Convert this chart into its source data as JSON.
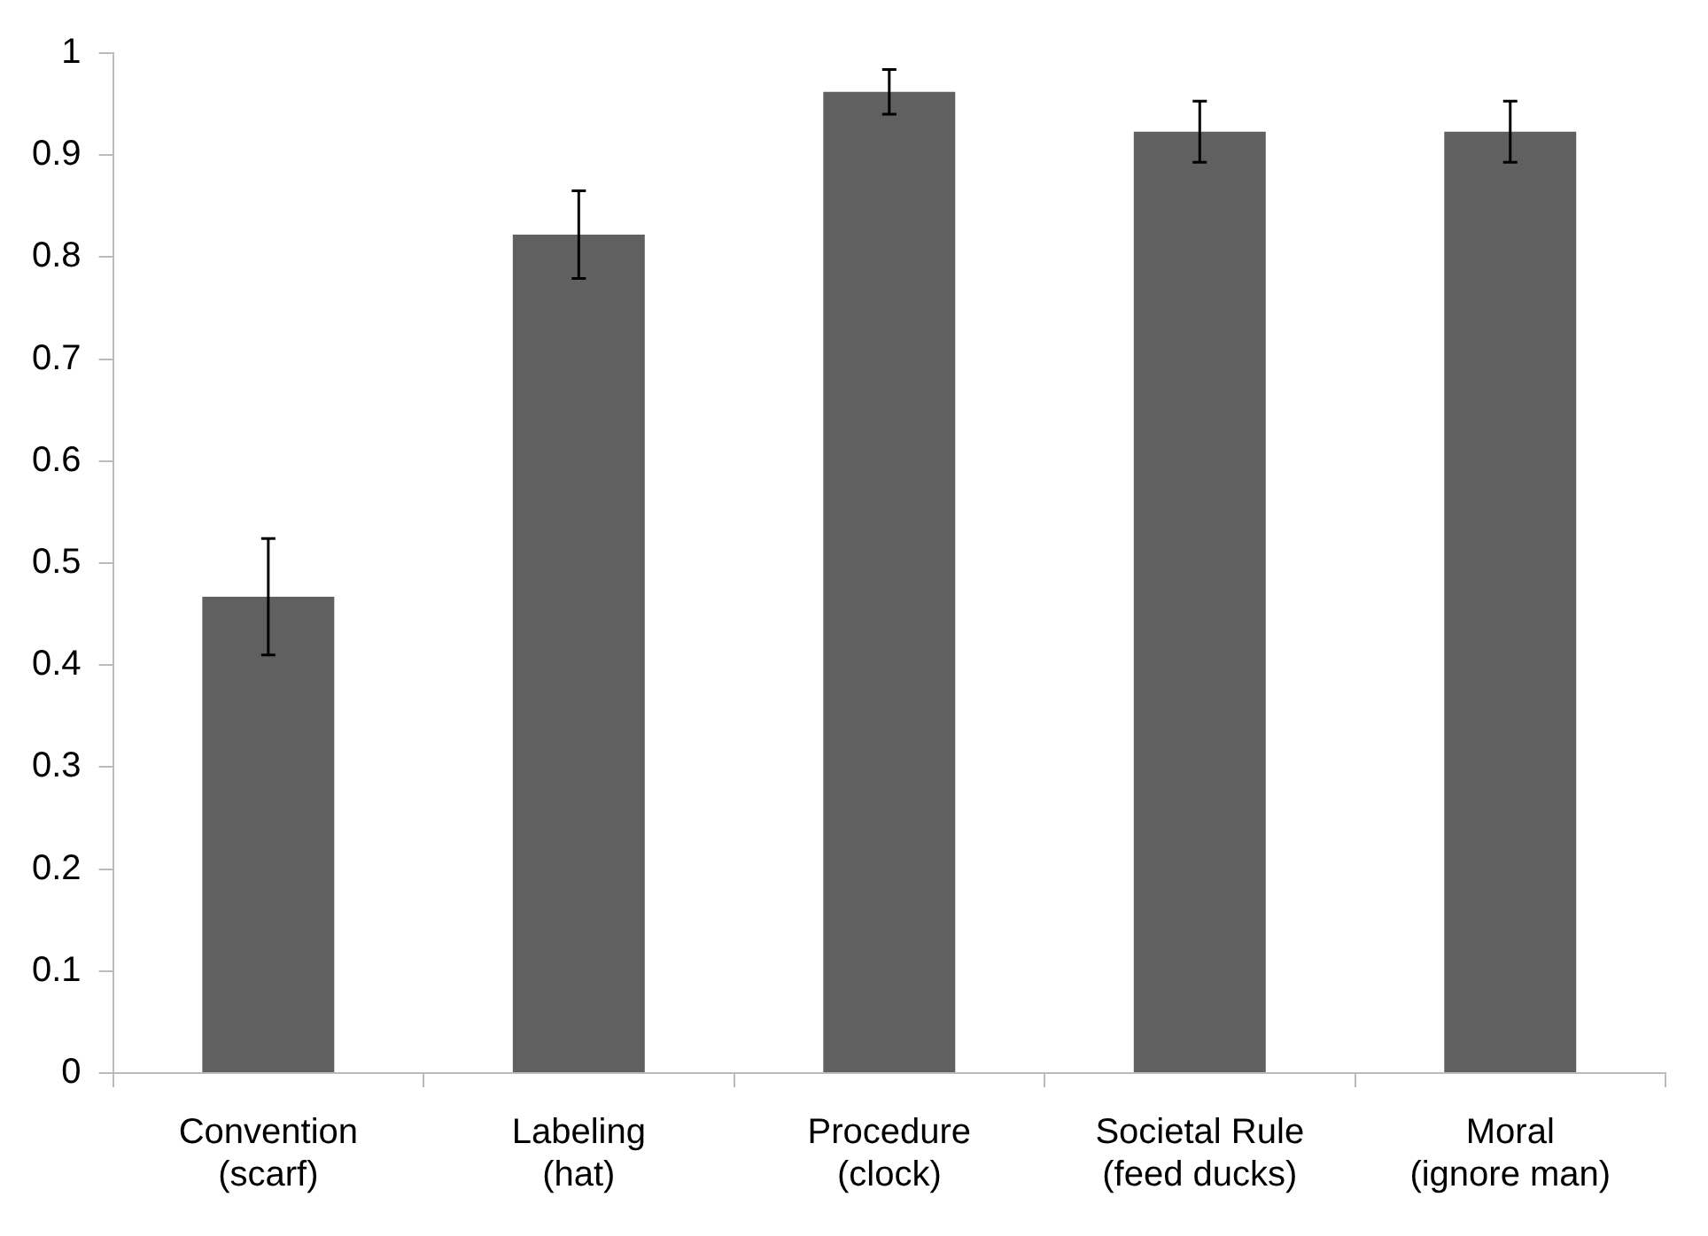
{
  "chart_data": {
    "type": "bar",
    "categories": [
      "Convention\n(scarf)",
      "Labeling\n(hat)",
      "Procedure\n(clock)",
      "Societal Rule\n(feed ducks)",
      "Moral\n(ignore man)"
    ],
    "values": [
      0.467,
      0.822,
      0.962,
      0.923,
      0.923
    ],
    "errors": [
      0.057,
      0.043,
      0.022,
      0.03,
      0.03
    ],
    "color": "#606060",
    "ylim": [
      0,
      1
    ],
    "yticks": [
      0,
      0.1,
      0.2,
      0.3,
      0.4,
      0.5,
      0.6,
      0.7,
      0.8,
      0.9,
      1
    ],
    "grid": false
  }
}
